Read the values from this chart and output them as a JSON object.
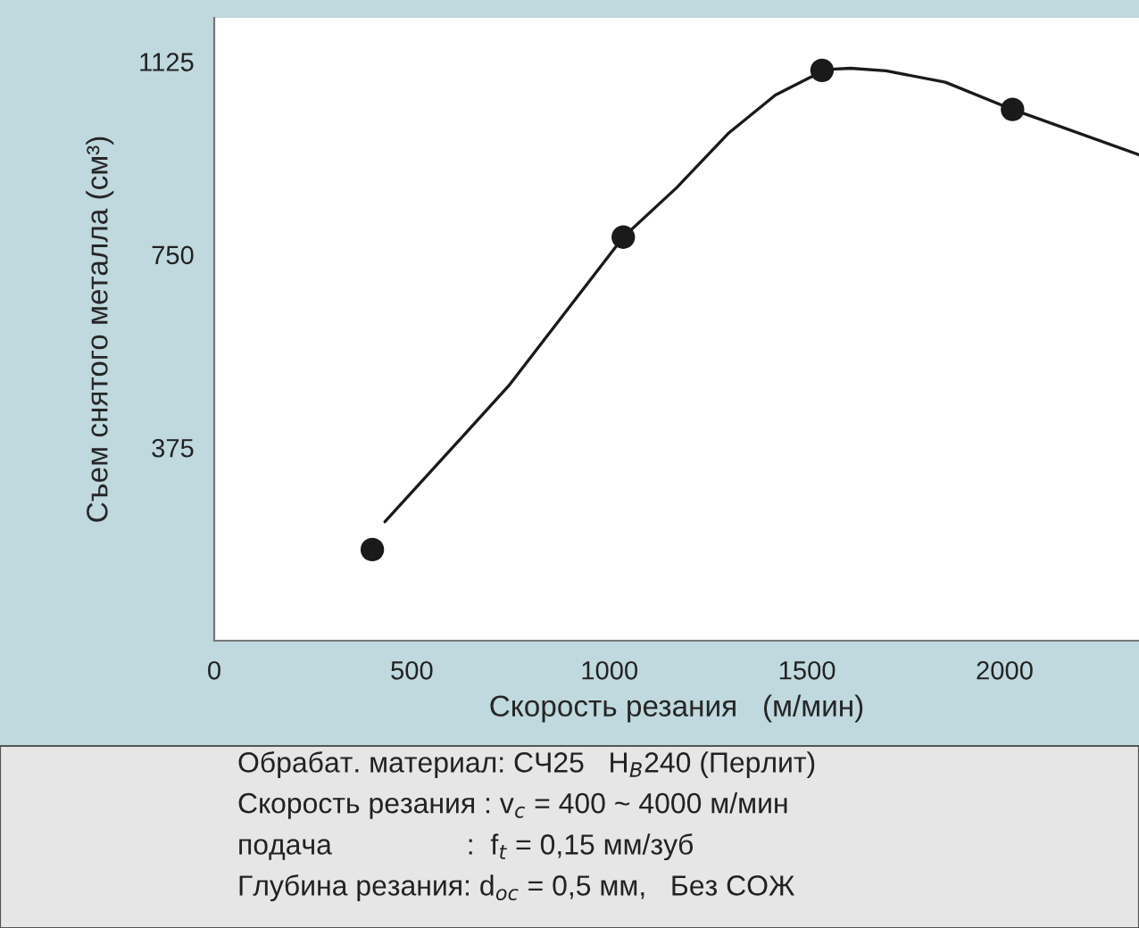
{
  "chart_data": {
    "type": "line",
    "xlabel": "Скорость резания   (м/мин)",
    "ylabel": "Съем снятого металла (см³)",
    "xlim": [
      0,
      2340
    ],
    "ylim": [
      0,
      1210
    ],
    "xticks": [
      0,
      500,
      1000,
      1500,
      2000
    ],
    "yticks": [
      375,
      750,
      1125
    ],
    "grid": false,
    "series": [
      {
        "color": "#1a1a1a",
        "marker": "none",
        "line_style": "solid",
        "x": [
          432,
          745,
          1035,
          1170,
          1300,
          1420,
          1510,
          1560,
          1610,
          1700,
          1850,
          2020,
          2340
        ],
        "values": [
          231,
          495,
          784,
          880,
          985,
          1060,
          1095,
          1110,
          1112,
          1107,
          1085,
          1032,
          944
        ]
      },
      {
        "type": "scatter",
        "color": "#1a1a1a",
        "marker": "circle",
        "x": [
          400,
          1035,
          1538,
          2020
        ],
        "values": [
          177,
          784,
          1108,
          1032
        ]
      }
    ],
    "annotations": [
      "Обрабат. материал: СЧ25   H$_{B}$240 (Перлит)",
      "Скорость резания : v$_{c}$ = 400 ~ 4000 м/мин",
      "подача                 :  f$_{t}$ = 0,15 мм/зуб",
      "Глубина резания: d$_{oc}$ = 0,5 мм,   Без СОЖ"
    ]
  }
}
